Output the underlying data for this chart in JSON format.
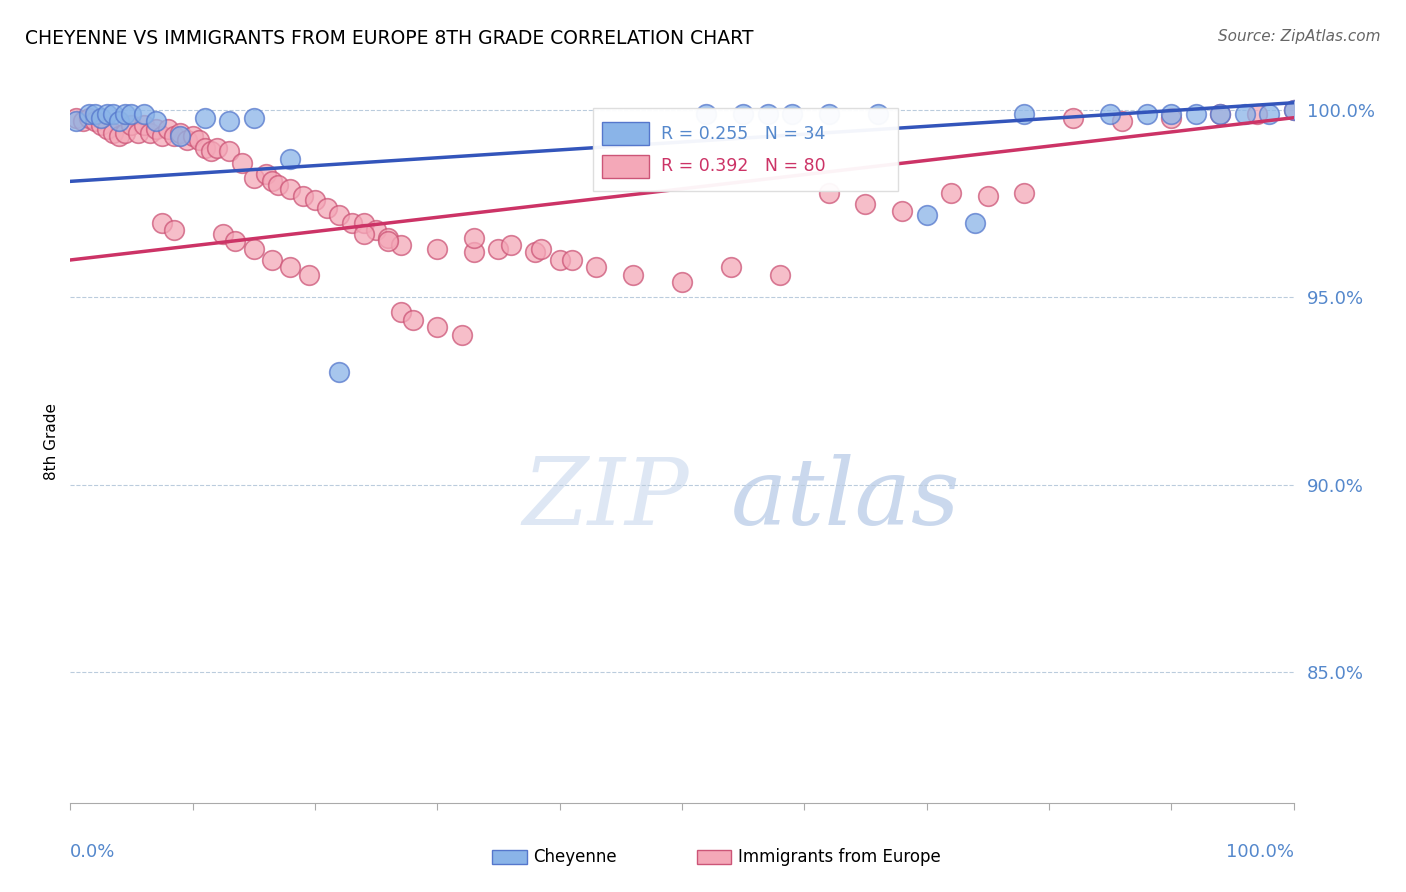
{
  "title": "CHEYENNE VS IMMIGRANTS FROM EUROPE 8TH GRADE CORRELATION CHART",
  "source": "Source: ZipAtlas.com",
  "ylabel": "8th Grade",
  "blue_R": 0.255,
  "blue_N": 34,
  "pink_R": 0.392,
  "pink_N": 80,
  "blue_color": "#8ab4e8",
  "pink_color": "#f4a8b8",
  "blue_edge_color": "#5577cc",
  "pink_edge_color": "#cc5577",
  "blue_line_color": "#3355bb",
  "pink_line_color": "#cc3366",
  "axis_label_color": "#5588cc",
  "grid_color": "#bbccdd",
  "watermark_color": "#d0dff0",
  "xlim": [
    0.0,
    1.0
  ],
  "ylim": [
    0.815,
    1.008
  ],
  "ytick_positions": [
    0.85,
    0.9,
    0.95,
    1.0
  ],
  "ytick_labels": [
    "85.0%",
    "90.0%",
    "95.0%",
    "100.0%"
  ],
  "blue_x": [
    0.005,
    0.015,
    0.02,
    0.025,
    0.03,
    0.035,
    0.04,
    0.045,
    0.05,
    0.06,
    0.07,
    0.09,
    0.11,
    0.13,
    0.15,
    0.18,
    0.22,
    0.52,
    0.55,
    0.57,
    0.59,
    0.62,
    0.66,
    0.7,
    0.74,
    0.78,
    0.85,
    0.88,
    0.9,
    0.92,
    0.94,
    0.96,
    0.98,
    1.0
  ],
  "blue_y": [
    0.997,
    0.999,
    0.999,
    0.998,
    0.999,
    0.999,
    0.997,
    0.999,
    0.999,
    0.999,
    0.997,
    0.993,
    0.998,
    0.997,
    0.998,
    0.987,
    0.93,
    0.999,
    0.999,
    0.999,
    0.999,
    0.999,
    0.999,
    0.972,
    0.97,
    0.999,
    0.999,
    0.999,
    0.999,
    0.999,
    0.999,
    0.999,
    0.999,
    1.0
  ],
  "pink_x": [
    0.005,
    0.01,
    0.015,
    0.02,
    0.025,
    0.03,
    0.035,
    0.04,
    0.045,
    0.05,
    0.055,
    0.06,
    0.065,
    0.07,
    0.075,
    0.08,
    0.085,
    0.09,
    0.095,
    0.1,
    0.105,
    0.11,
    0.115,
    0.12,
    0.13,
    0.14,
    0.15,
    0.16,
    0.165,
    0.17,
    0.18,
    0.19,
    0.2,
    0.21,
    0.22,
    0.23,
    0.24,
    0.25,
    0.26,
    0.27,
    0.3,
    0.33,
    0.35,
    0.38,
    0.4,
    0.43,
    0.46,
    0.5,
    0.54,
    0.58,
    0.62,
    0.65,
    0.68,
    0.72,
    0.75,
    0.78,
    0.82,
    0.86,
    0.9,
    0.94,
    0.97,
    1.0,
    0.075,
    0.085,
    0.125,
    0.135,
    0.15,
    0.165,
    0.18,
    0.195,
    0.24,
    0.26,
    0.33,
    0.36,
    0.385,
    0.41,
    0.27,
    0.28,
    0.3,
    0.32
  ],
  "pink_y": [
    0.998,
    0.997,
    0.998,
    0.997,
    0.996,
    0.995,
    0.994,
    0.993,
    0.994,
    0.996,
    0.994,
    0.996,
    0.994,
    0.995,
    0.993,
    0.995,
    0.993,
    0.994,
    0.992,
    0.993,
    0.992,
    0.99,
    0.989,
    0.99,
    0.989,
    0.986,
    0.982,
    0.983,
    0.981,
    0.98,
    0.979,
    0.977,
    0.976,
    0.974,
    0.972,
    0.97,
    0.97,
    0.968,
    0.966,
    0.964,
    0.963,
    0.962,
    0.963,
    0.962,
    0.96,
    0.958,
    0.956,
    0.954,
    0.958,
    0.956,
    0.978,
    0.975,
    0.973,
    0.978,
    0.977,
    0.978,
    0.998,
    0.997,
    0.998,
    0.999,
    0.999,
    1.0,
    0.97,
    0.968,
    0.967,
    0.965,
    0.963,
    0.96,
    0.958,
    0.956,
    0.967,
    0.965,
    0.966,
    0.964,
    0.963,
    0.96,
    0.946,
    0.944,
    0.942,
    0.94
  ]
}
